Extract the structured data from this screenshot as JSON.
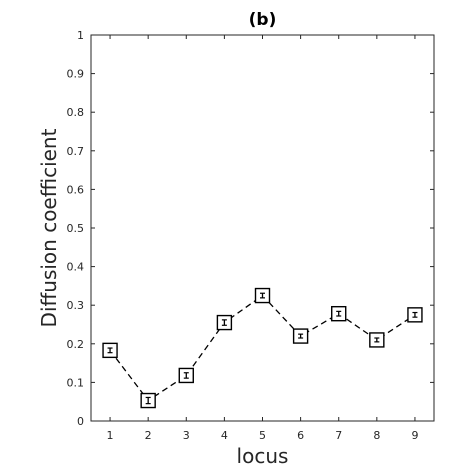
{
  "chart_data": {
    "type": "line",
    "title": "(b)",
    "xlabel": "locus",
    "ylabel": "Diffusion coefficient",
    "x": [
      1,
      2,
      3,
      4,
      5,
      6,
      7,
      8,
      9
    ],
    "x_ticks": [
      "1",
      "2",
      "3",
      "4",
      "5",
      "6",
      "7",
      "8",
      "9"
    ],
    "xlim": [
      0.5,
      9.5
    ],
    "ylim": [
      0,
      1
    ],
    "y_ticks": [
      "0",
      "0.1",
      "0.2",
      "0.3",
      "0.4",
      "0.5",
      "0.6",
      "0.7",
      "0.8",
      "0.9",
      "1"
    ],
    "grid": false,
    "series": [
      {
        "values": [
          0.183,
          0.053,
          0.118,
          0.255,
          0.325,
          0.22,
          0.278,
          0.21,
          0.275
        ],
        "errors": [
          0.006,
          0.008,
          0.007,
          0.007,
          0.006,
          0.005,
          0.006,
          0.005,
          0.006
        ],
        "line_style": "dashed",
        "marker": "square-open",
        "color": "#000000"
      }
    ]
  }
}
